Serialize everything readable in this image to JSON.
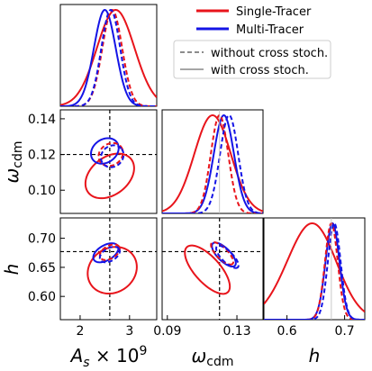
{
  "chart_data": {
    "type": "triangle-corner-plot",
    "parameters": [
      {
        "key": "As",
        "label_main": "A",
        "label_sub": "s",
        "label_rest": " × 10",
        "label_sup": "9",
        "ticks": [
          "2",
          "3"
        ],
        "tick_values": [
          2,
          3
        ],
        "range": [
          1.6,
          3.55
        ],
        "fiducial": 2.6
      },
      {
        "key": "omega_cdm",
        "label_main": "ω",
        "label_sub": "cdm",
        "ticks_x": [
          "0.09",
          "0.13"
        ],
        "tick_values_x": [
          0.09,
          0.13
        ],
        "ticks_y": [
          "0.10",
          "0.12",
          "0.14"
        ],
        "tick_values_y": [
          0.1,
          0.12,
          0.14
        ],
        "range": [
          0.087,
          0.145
        ],
        "fiducial": 0.12
      },
      {
        "key": "h",
        "label_main": "h",
        "ticks_x": [
          "0.6",
          "0.7"
        ],
        "tick_values_x": [
          0.6,
          0.7
        ],
        "ticks_y": [
          "0.60",
          "0.65",
          "0.70"
        ],
        "tick_values_y": [
          0.6,
          0.65,
          0.7
        ],
        "range": [
          0.56,
          0.735
        ],
        "fiducial": 0.677
      }
    ],
    "series": [
      {
        "name": "Single-Tracer",
        "color": "#e8141b",
        "marginals": {
          "As": [
            2.72,
            0.38
          ],
          "omega_cdm": [
            0.116,
            0.0105
          ],
          "h": [
            0.655,
            0.038,
            0.62,
            0.04
          ]
        },
        "contours": {
          "As_omega_cdm": {
            "center": [
              2.6,
              0.108
            ],
            "radii": [
              0.55,
              0.0105
            ],
            "rotation": -38,
            "dashed": false
          },
          "As_h": {
            "center": [
              2.65,
              0.645
            ],
            "radii": [
              0.52,
              0.038
            ],
            "rotation": -35,
            "dashed": false
          },
          "omega_cdm_h": {
            "center": [
              0.113,
              0.646
            ],
            "radii": [
              0.0175,
              0.022
            ],
            "rotation": 48,
            "dashed": false
          }
        }
      },
      {
        "name": "Multi-Tracer",
        "color": "#1414e6",
        "marginals": {
          "As": [
            2.5,
            0.22
          ],
          "omega_cdm": [
            0.1225,
            0.0058
          ],
          "h": [
            0.679,
            0.012
          ]
        },
        "contours": {
          "As_omega_cdm": {
            "center": [
              2.5,
              0.122
            ],
            "radii": [
              0.3,
              0.0065
            ],
            "rotation": -35,
            "dashed": false
          },
          "As_h": {
            "center": [
              2.52,
              0.675
            ],
            "radii": [
              0.28,
              0.013
            ],
            "rotation": -30,
            "dashed": false
          },
          "omega_cdm_h": {
            "center": [
              0.1225,
              0.672
            ],
            "radii": [
              0.009,
              0.011
            ],
            "rotation": 45,
            "dashed": false
          }
        }
      },
      {
        "name": "Single-Tracer (without cross stoch.)",
        "color": "#e8141b",
        "marginals": {
          "As": [
            2.65,
            0.2
          ],
          "omega_cdm": [
            0.12,
            0.005
          ],
          "h": [
            0.677,
            0.011
          ]
        },
        "contours": {
          "As_omega_cdm": {
            "center": [
              2.62,
              0.12
            ],
            "radii": [
              0.26,
              0.006
            ],
            "rotation": -35,
            "dashed": true
          },
          "As_h": {
            "center": [
              2.6,
              0.676
            ],
            "radii": [
              0.22,
              0.011
            ],
            "rotation": -30,
            "dashed": true
          },
          "omega_cdm_h": {
            "center": [
              0.1215,
              0.674
            ],
            "radii": [
              0.0085,
              0.0095
            ],
            "rotation": 45,
            "dashed": true
          }
        }
      },
      {
        "name": "Multi-Tracer (without cross stoch.)",
        "color": "#1414e6",
        "marginals": {
          "As": [
            2.62,
            0.19
          ],
          "omega_cdm": [
            0.1255,
            0.0052
          ],
          "h": [
            0.682,
            0.011
          ]
        },
        "contours": {
          "As_omega_cdm": {
            "center": [
              2.65,
              0.119
            ],
            "radii": [
              0.24,
              0.0058
            ],
            "rotation": -38,
            "dashed": true
          },
          "As_h": {
            "center": [
              2.6,
              0.672
            ],
            "radii": [
              0.22,
              0.011
            ],
            "rotation": -30,
            "dashed": true
          },
          "omega_cdm_h": {
            "center": [
              0.1245,
              0.668
            ],
            "radii": [
              0.0085,
              0.0095
            ],
            "rotation": 45,
            "dashed": true
          }
        }
      }
    ],
    "legend": {
      "placement": "top-right",
      "entries": [
        {
          "label": "Single-Tracer",
          "color": "#e8141b",
          "style": "solid"
        },
        {
          "label": "Multi-Tracer",
          "color": "#1414e6",
          "style": "solid"
        }
      ],
      "style_entries": [
        {
          "label": "without cross stoch.",
          "color": "#666666",
          "style": "dashed"
        },
        {
          "label": "with cross stoch.",
          "color": "#888888",
          "style": "solid"
        }
      ]
    },
    "fiducial_line_color": "#000000",
    "grid": false
  }
}
